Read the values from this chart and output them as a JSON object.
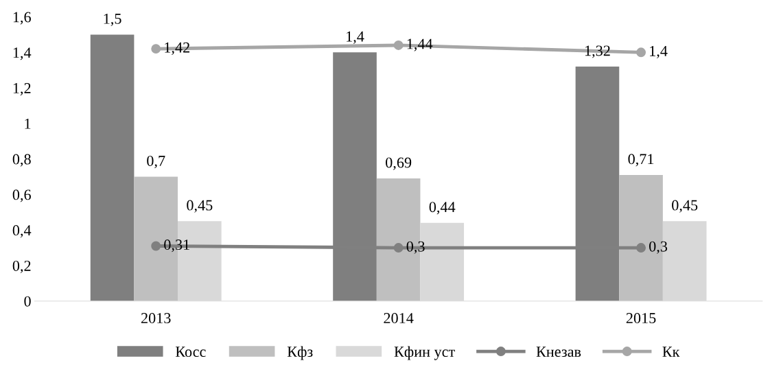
{
  "chart_data": {
    "type": "bar",
    "categories": [
      "2013",
      "2014",
      "2015"
    ],
    "series": [
      {
        "name": "Косс",
        "color": "#7f7f7f",
        "values": [
          1.5,
          1.4,
          1.32
        ],
        "value_labels": [
          "1,5",
          "1,4",
          "1,32"
        ]
      },
      {
        "name": "Кфз",
        "color": "#bfbfbf",
        "values": [
          0.7,
          0.69,
          0.71
        ],
        "value_labels": [
          "0,7",
          "0,69",
          "0,71"
        ]
      },
      {
        "name": "Кфин уст",
        "color": "#d9d9d9",
        "values": [
          0.45,
          0.44,
          0.45
        ],
        "value_labels": [
          "0,45",
          "0,44",
          "0,45"
        ]
      },
      {
        "name": "Кнезав",
        "type": "line",
        "marker": "circle",
        "color": "#808080",
        "values": [
          0.31,
          0.3,
          0.3
        ],
        "value_labels": [
          "0,31",
          "0,3",
          "0,3"
        ]
      },
      {
        "name": "Кк",
        "type": "line",
        "marker": "circle",
        "color": "#a6a6a6",
        "values": [
          1.42,
          1.44,
          1.4
        ],
        "value_labels": [
          "1,42",
          "1,44",
          "1,4"
        ]
      }
    ],
    "ylim": [
      0,
      1.6
    ],
    "yticks": [
      0,
      {
        "value": 0.2,
        "label": "0,2"
      },
      {
        "value": 0.4,
        "label": "0,4"
      },
      {
        "value": 0.6,
        "label": "0,6"
      },
      {
        "value": 0.8,
        "label": "0,8"
      },
      1,
      {
        "value": 1.2,
        "label": "1,2"
      },
      {
        "value": 1.4,
        "label": "1,4"
      },
      {
        "value": 1.6,
        "label": "1,6"
      }
    ],
    "grid": false,
    "legend": "bottom"
  }
}
